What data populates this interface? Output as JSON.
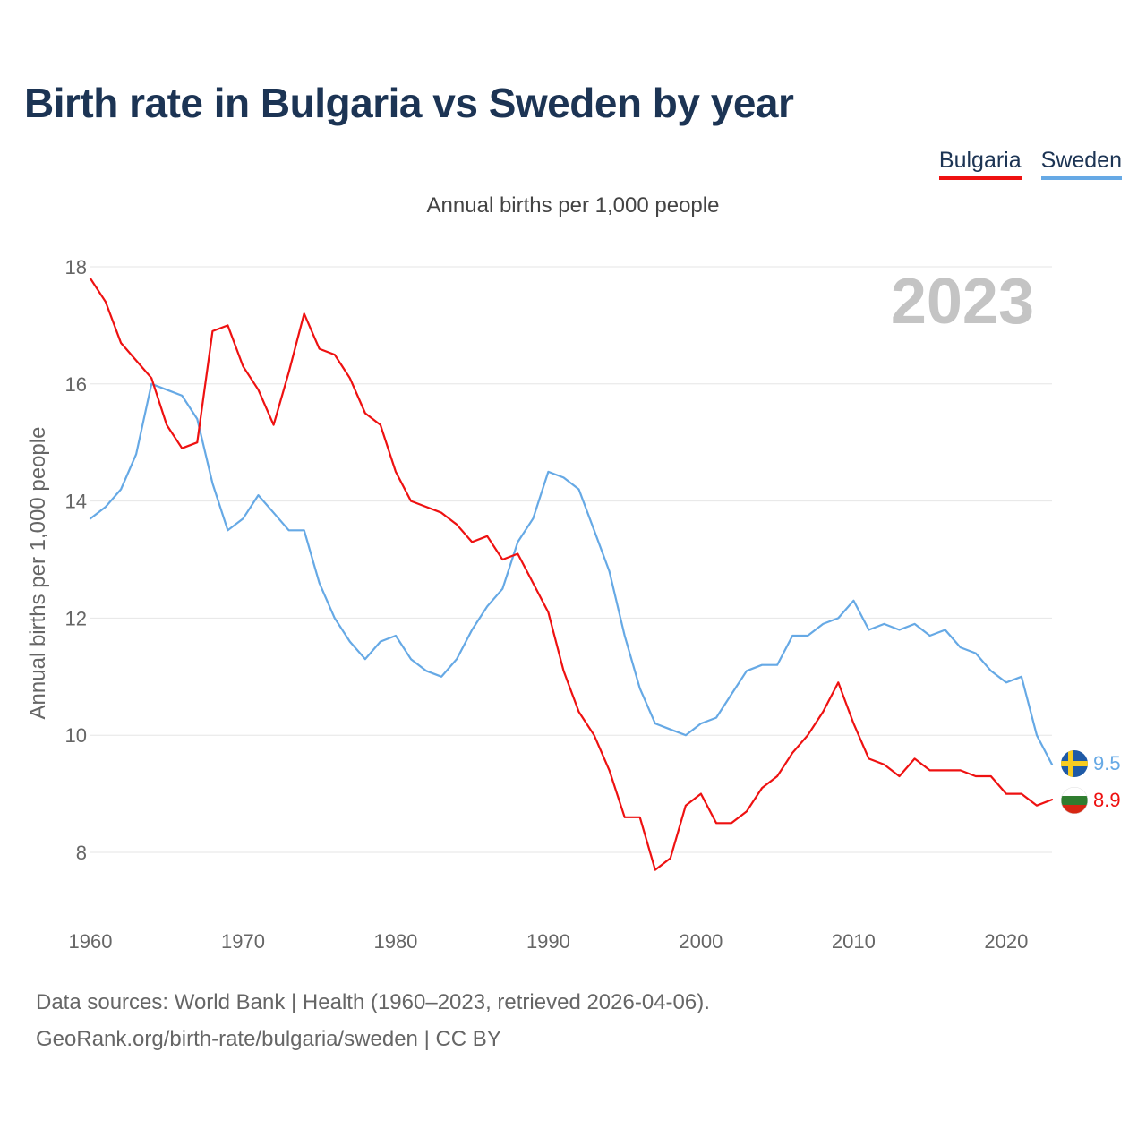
{
  "title": "Birth rate in Bulgaria vs Sweden by year",
  "subtitle": "Annual births per 1,000 people",
  "legend": [
    {
      "label": "Bulgaria",
      "color": "#ee1111"
    },
    {
      "label": "Sweden",
      "color": "#66a9e5"
    }
  ],
  "current_year": "2023",
  "sources": {
    "line1": "Data sources: World Bank | Health (1960–2023, retrieved 2026-04-06).",
    "line2": "GeoRank.org/birth-rate/bulgaria/sweden | CC BY"
  },
  "chart_data": {
    "type": "line",
    "title": "Birth rate in Bulgaria vs Sweden by year",
    "ylabel": "Annual births per 1,000 people",
    "xlabel": "",
    "xlim": [
      1960,
      2023
    ],
    "ylim": [
      7,
      18.2
    ],
    "xticks": [
      1960,
      1970,
      1980,
      1990,
      2000,
      2010,
      2020
    ],
    "yticks": [
      8,
      10,
      12,
      14,
      16,
      18
    ],
    "grid": true,
    "x": [
      1960,
      1961,
      1962,
      1963,
      1964,
      1965,
      1966,
      1967,
      1968,
      1969,
      1970,
      1971,
      1972,
      1973,
      1974,
      1975,
      1976,
      1977,
      1978,
      1979,
      1980,
      1981,
      1982,
      1983,
      1984,
      1985,
      1986,
      1987,
      1988,
      1989,
      1990,
      1991,
      1992,
      1993,
      1994,
      1995,
      1996,
      1997,
      1998,
      1999,
      2000,
      2001,
      2002,
      2003,
      2004,
      2005,
      2006,
      2007,
      2008,
      2009,
      2010,
      2011,
      2012,
      2013,
      2014,
      2015,
      2016,
      2017,
      2018,
      2019,
      2020,
      2021,
      2022,
      2023
    ],
    "series": [
      {
        "name": "Bulgaria",
        "color": "#ee1111",
        "end_label": "8.9",
        "values": [
          17.8,
          17.4,
          16.7,
          16.4,
          16.1,
          15.3,
          14.9,
          15.0,
          16.9,
          17.0,
          16.3,
          15.9,
          15.3,
          16.2,
          17.2,
          16.6,
          16.5,
          16.1,
          15.5,
          15.3,
          14.5,
          14.0,
          13.9,
          13.8,
          13.6,
          13.3,
          13.4,
          13.0,
          13.1,
          12.6,
          12.1,
          11.1,
          10.4,
          10.0,
          9.4,
          8.6,
          8.6,
          7.7,
          7.9,
          8.8,
          9.0,
          8.5,
          8.5,
          8.7,
          9.1,
          9.3,
          9.7,
          10.0,
          10.4,
          10.9,
          10.2,
          9.6,
          9.5,
          9.3,
          9.6,
          9.4,
          9.4,
          9.4,
          9.3,
          9.3,
          9.0,
          9.0,
          8.8,
          8.9
        ]
      },
      {
        "name": "Sweden",
        "color": "#66a9e5",
        "end_label": "9.5",
        "values": [
          13.7,
          13.9,
          14.2,
          14.8,
          16.0,
          15.9,
          15.8,
          15.4,
          14.3,
          13.5,
          13.7,
          14.1,
          13.8,
          13.5,
          13.5,
          12.6,
          12.0,
          11.6,
          11.3,
          11.6,
          11.7,
          11.3,
          11.1,
          11.0,
          11.3,
          11.8,
          12.2,
          12.5,
          13.3,
          13.7,
          14.5,
          14.4,
          14.2,
          13.5,
          12.8,
          11.7,
          10.8,
          10.2,
          10.1,
          10.0,
          10.2,
          10.3,
          10.7,
          11.1,
          11.2,
          11.2,
          11.7,
          11.7,
          11.9,
          12.0,
          12.3,
          11.8,
          11.9,
          11.8,
          11.9,
          11.7,
          11.8,
          11.5,
          11.4,
          11.1,
          10.9,
          11.0,
          10.0,
          9.5
        ]
      }
    ]
  }
}
